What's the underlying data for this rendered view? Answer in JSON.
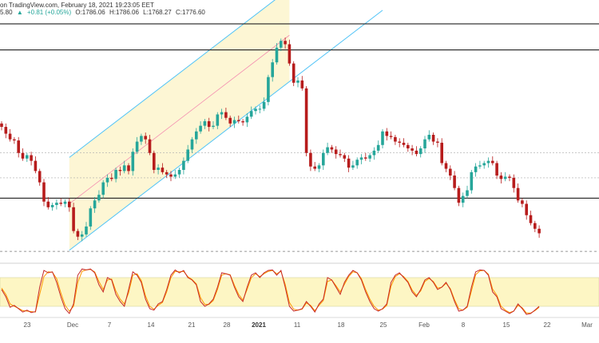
{
  "header": {
    "source": "on TradingView.com, February 18, 2021 19:23:05 EET",
    "ohlc_prefix": "5.80",
    "change": "+0.81 (+0.05%)",
    "open": "O:1786.06",
    "high": "H:1786.06",
    "low": "L:1768.27",
    "close": "C:1776.60"
  },
  "colors": {
    "up": "#26a69a",
    "down": "#b71c1c",
    "channel_fill": "#fdf6d4",
    "channel_line": "#4fc3f7",
    "channel_mid": "#f48fb1",
    "osc_band": "#fdf6c4",
    "osc_k": "#c62828",
    "osc_d": "#ff9800"
  },
  "chart_data": [
    {
      "type": "candlestick",
      "grid": false,
      "ylim": [
        1760,
        1970
      ],
      "x_ticks": [
        "23",
        "Dec",
        "7",
        "14",
        "21",
        "28",
        "2021",
        "11",
        "18",
        "25",
        "Feb",
        "8",
        "15",
        "22",
        "Mar"
      ],
      "bold_ticks": [
        "2021"
      ],
      "close": [
        1872,
        1866,
        1861,
        1860,
        1849,
        1844,
        1847,
        1842,
        1833,
        1823,
        1806,
        1801,
        1803,
        1805,
        1804,
        1806,
        1801,
        1780,
        1775,
        1777,
        1784,
        1800,
        1807,
        1812,
        1823,
        1827,
        1826,
        1834,
        1833,
        1838,
        1833,
        1850,
        1859,
        1864,
        1861,
        1849,
        1834,
        1836,
        1832,
        1830,
        1828,
        1830,
        1834,
        1842,
        1852,
        1861,
        1868,
        1873,
        1877,
        1872,
        1873,
        1883,
        1885,
        1880,
        1875,
        1878,
        1877,
        1876,
        1881,
        1886,
        1888,
        1888,
        1894,
        1916,
        1929,
        1942,
        1948,
        1945,
        1928,
        1911,
        1913,
        1906,
        1849,
        1837,
        1835,
        1838,
        1849,
        1854,
        1852,
        1848,
        1847,
        1844,
        1836,
        1838,
        1843,
        1845,
        1844,
        1847,
        1851,
        1856,
        1868,
        1864,
        1863,
        1859,
        1858,
        1856,
        1853,
        1851,
        1848,
        1853,
        1861,
        1865,
        1859,
        1858,
        1840,
        1835,
        1829,
        1818,
        1805,
        1811,
        1816,
        1832,
        1837,
        1838,
        1840,
        1842,
        1840,
        1829,
        1826,
        1828,
        1827,
        1818,
        1807,
        1804,
        1794,
        1787,
        1782,
        1778
      ],
      "levels": [
        1963,
        1940,
        1849,
        1827,
        1809
      ],
      "dashed_level": 1762,
      "channel": {
        "lower": [
          {
            "index": 16,
            "value": 1763
          },
          {
            "index": 68,
            "value": 1912
          }
        ],
        "upper": [
          {
            "index": 16,
            "value": 1845
          },
          {
            "index": 68,
            "value": 1994
          }
        ]
      }
    },
    {
      "type": "line",
      "name": "",
      "band": [
        20,
        80
      ],
      "ylim": [
        0,
        100
      ],
      "k": [
        55,
        40,
        18,
        22,
        15,
        8,
        12,
        7,
        9,
        60,
        95,
        90,
        92,
        70,
        40,
        15,
        5,
        25,
        85,
        98,
        96,
        98,
        90,
        65,
        50,
        80,
        75,
        45,
        30,
        20,
        55,
        92,
        85,
        70,
        35,
        15,
        12,
        25,
        30,
        55,
        85,
        96,
        90,
        95,
        80,
        75,
        65,
        30,
        20,
        25,
        35,
        60,
        90,
        88,
        85,
        60,
        40,
        30,
        60,
        85,
        90,
        80,
        90,
        95,
        96,
        85,
        95,
        60,
        20,
        10,
        12,
        15,
        30,
        20,
        8,
        25,
        35,
        80,
        75,
        60,
        45,
        70,
        85,
        95,
        90,
        75,
        50,
        30,
        15,
        10,
        15,
        25,
        70,
        85,
        90,
        80,
        70,
        50,
        40,
        55,
        75,
        80,
        70,
        55,
        60,
        70,
        55,
        30,
        10,
        12,
        20,
        60,
        92,
        96,
        95,
        85,
        50,
        40,
        15,
        10,
        5,
        10,
        25,
        15,
        3,
        5,
        12,
        20
      ],
      "d": [
        58,
        45,
        25,
        20,
        16,
        11,
        10,
        9,
        8,
        45,
        82,
        92,
        91,
        78,
        48,
        22,
        10,
        20,
        70,
        93,
        96,
        97,
        92,
        72,
        55,
        75,
        77,
        52,
        35,
        25,
        48,
        85,
        88,
        74,
        42,
        20,
        14,
        22,
        28,
        50,
        80,
        93,
        92,
        93,
        82,
        76,
        67,
        38,
        24,
        24,
        32,
        55,
        85,
        88,
        86,
        64,
        45,
        33,
        55,
        80,
        88,
        82,
        88,
        93,
        95,
        88,
        93,
        66,
        28,
        14,
        12,
        14,
        27,
        22,
        11,
        22,
        32,
        72,
        75,
        63,
        50,
        66,
        82,
        92,
        90,
        78,
        55,
        35,
        20,
        12,
        14,
        22,
        62,
        82,
        88,
        82,
        72,
        54,
        43,
        52,
        72,
        78,
        72,
        58,
        60,
        68,
        57,
        34,
        15,
        12,
        18,
        52,
        86,
        94,
        95,
        87,
        56,
        43,
        20,
        12,
        7,
        10,
        22,
        17,
        6,
        6,
        11,
        18
      ]
    }
  ]
}
